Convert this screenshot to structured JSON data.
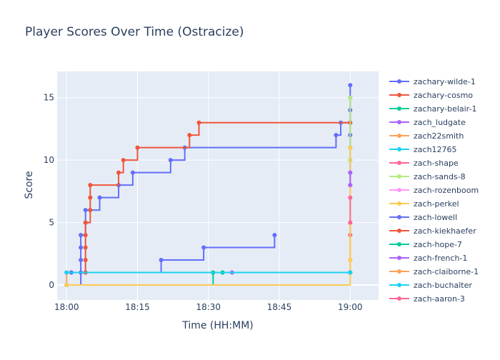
{
  "chart_data": {
    "type": "line",
    "line_shape": "step",
    "title": "Player Scores Over Time (Ostracize)",
    "xlabel": "Time (HH:MM)",
    "ylabel": "Score",
    "xlim": [
      "17:58",
      "19:06"
    ],
    "ylim": [
      -1.2,
      17.1
    ],
    "x_ticks": [
      "18:00",
      "18:15",
      "18:30",
      "18:45",
      "19:00"
    ],
    "y_ticks": [
      0,
      5,
      10,
      15
    ],
    "grid": true,
    "legend_position": "right",
    "series": [
      {
        "name": "zachary-wilde-1",
        "color": "#636efa",
        "x": [
          "18:00",
          "18:03",
          "18:03",
          "18:03",
          "18:03",
          "18:04",
          "18:04",
          "18:07",
          "18:11",
          "18:14",
          "18:22",
          "18:25",
          "18:57",
          "18:58",
          "19:00",
          "19:00",
          "19:00",
          "19:00",
          "19:00",
          "19:00",
          "19:00",
          "19:00",
          "19:00"
        ],
        "y": [
          0,
          1,
          2,
          3,
          4,
          5,
          6,
          7,
          8,
          9,
          10,
          11,
          12,
          13,
          14,
          15,
          16,
          13,
          12,
          11,
          10,
          9,
          8
        ]
      },
      {
        "name": "zachary-cosmo",
        "color": "#EF553B",
        "x": [
          "18:00",
          "18:04",
          "18:04",
          "18:04",
          "18:04",
          "18:04",
          "18:05",
          "18:05",
          "18:05",
          "18:11",
          "18:12",
          "18:15",
          "18:26",
          "18:28",
          "19:00"
        ],
        "y": [
          1,
          1,
          2,
          3,
          4,
          5,
          6,
          7,
          8,
          9,
          10,
          11,
          12,
          13,
          13
        ]
      },
      {
        "name": "zachary-belair-1",
        "color": "#00cc96",
        "x": [
          "18:00",
          "18:31",
          "18:33",
          "19:00"
        ],
        "y": [
          0,
          1,
          1,
          1
        ]
      },
      {
        "name": "zach_ludgate",
        "color": "#ab63fa",
        "x": [
          "18:01",
          "18:35",
          "19:00"
        ],
        "y": [
          1,
          1,
          1
        ]
      },
      {
        "name": "zach22smith",
        "color": "#FFA15A",
        "x": [
          "18:00",
          "18:00",
          "19:00",
          "19:00",
          "19:00"
        ],
        "y": [
          0,
          1,
          1,
          2,
          4
        ]
      },
      {
        "name": "zach12765",
        "color": "#19d3f3",
        "x": [
          "18:00",
          "19:00"
        ],
        "y": [
          1,
          1
        ]
      },
      {
        "name": "zach-shape",
        "color": "#FF6692",
        "x": [
          "19:00",
          "19:00"
        ],
        "y": [
          4,
          5
        ]
      },
      {
        "name": "zach-sands-8",
        "color": "#B6E880",
        "x": [
          "19:00",
          "19:00",
          "19:00"
        ],
        "y": [
          10,
          11,
          15
        ]
      },
      {
        "name": "zach-rozenboom",
        "color": "#FF97FF",
        "x": [
          "19:00",
          "19:00"
        ],
        "y": [
          7,
          8
        ]
      },
      {
        "name": "zach-perkel",
        "color": "#FECB52",
        "x": [
          "18:00",
          "19:00",
          "19:00"
        ],
        "y": [
          0,
          2,
          11
        ]
      },
      {
        "name": "zach-lowell",
        "color": "#636efa",
        "x": [
          "18:01",
          "18:20",
          "18:29",
          "18:44"
        ],
        "y": [
          1,
          2,
          3,
          4
        ]
      },
      {
        "name": "zach-kiekhaefer",
        "color": "#EF553B",
        "x": [
          "18:04",
          "19:00"
        ],
        "y": [
          1,
          1
        ]
      },
      {
        "name": "zach-hope-7",
        "color": "#00cc96",
        "x": [
          "18:33",
          "19:00"
        ],
        "y": [
          1,
          1
        ]
      },
      {
        "name": "zach-french-1",
        "color": "#ab63fa",
        "x": [
          "19:00",
          "19:00"
        ],
        "y": [
          8,
          9
        ]
      },
      {
        "name": "zach-claiborne-1",
        "color": "#FFA15A",
        "x": [
          "18:00",
          "19:00"
        ],
        "y": [
          1,
          1
        ]
      },
      {
        "name": "zach-buchalter",
        "color": "#19d3f3",
        "x": [
          "18:00",
          "19:00"
        ],
        "y": [
          1,
          1
        ]
      },
      {
        "name": "zach-aaron-3",
        "color": "#FF6692",
        "x": [
          "19:00",
          "19:00"
        ],
        "y": [
          5,
          7
        ]
      }
    ]
  }
}
